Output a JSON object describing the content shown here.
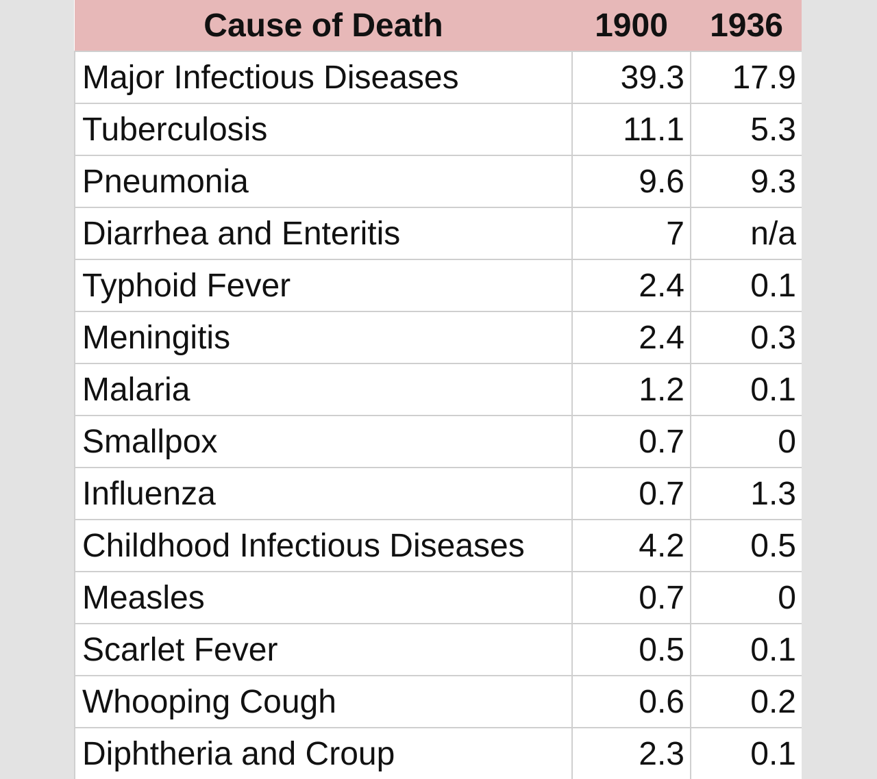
{
  "chart_data": {
    "type": "table",
    "columns": [
      "Cause of Death",
      "1900",
      "1936"
    ],
    "rows": [
      {
        "cause": "Major Infectious Diseases",
        "y1900": "39.3",
        "y1936": "17.9"
      },
      {
        "cause": "Tuberculosis",
        "y1900": "11.1",
        "y1936": "5.3"
      },
      {
        "cause": "Pneumonia",
        "y1900": "9.6",
        "y1936": "9.3"
      },
      {
        "cause": "Diarrhea and Enteritis",
        "y1900": "7",
        "y1936": "n/a"
      },
      {
        "cause": "Typhoid Fever",
        "y1900": "2.4",
        "y1936": "0.1"
      },
      {
        "cause": "Meningitis",
        "y1900": "2.4",
        "y1936": "0.3"
      },
      {
        "cause": "Malaria",
        "y1900": "1.2",
        "y1936": "0.1"
      },
      {
        "cause": "Smallpox",
        "y1900": "0.7",
        "y1936": "0"
      },
      {
        "cause": "Influenza",
        "y1900": "0.7",
        "y1936": "1.3"
      },
      {
        "cause": "Childhood Infectious Diseases",
        "y1900": "4.2",
        "y1936": "0.5"
      },
      {
        "cause": "Measles",
        "y1900": "0.7",
        "y1936": "0"
      },
      {
        "cause": "Scarlet Fever",
        "y1900": "0.5",
        "y1936": "0.1"
      },
      {
        "cause": "Whooping Cough",
        "y1900": "0.6",
        "y1936": "0.2"
      },
      {
        "cause": "Diphtheria and Croup",
        "y1900": "2.3",
        "y1936": "0.1"
      }
    ],
    "colors": {
      "header_background": "#e7b8b8",
      "page_background": "#e3e3e3",
      "cell_background": "#ffffff",
      "grid_line": "#cfcfcf"
    }
  }
}
